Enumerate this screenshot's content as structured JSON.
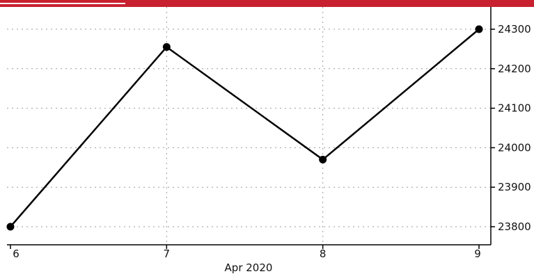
{
  "header": {
    "bar_color": "#c8202f",
    "tab_underline_color": "#ffffff"
  },
  "chart_data": {
    "type": "line",
    "title": "",
    "xlabel": "Apr 2020",
    "ylabel": "",
    "categories": [
      "6",
      "7",
      "8",
      "9"
    ],
    "series": [
      {
        "values": [
          23800,
          24255,
          23970,
          24300
        ],
        "color": "#000000",
        "marker": "circle"
      }
    ],
    "ylim": [
      23750,
      24350
    ],
    "yticks": [
      23800,
      23900,
      24000,
      24100,
      24200,
      24300
    ],
    "ytick_labels": [
      "23800",
      "23900",
      "24000",
      "24100",
      "24200",
      "24300"
    ],
    "y_axis_side": "right",
    "grid": true,
    "legend": "none"
  }
}
